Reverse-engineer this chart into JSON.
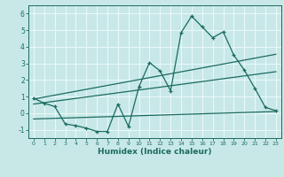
{
  "title": "",
  "xlabel": "Humidex (Indice chaleur)",
  "xlim": [
    -0.5,
    23.5
  ],
  "ylim": [
    -1.5,
    6.5
  ],
  "xticks": [
    0,
    1,
    2,
    3,
    4,
    5,
    6,
    7,
    8,
    9,
    10,
    11,
    12,
    13,
    14,
    15,
    16,
    17,
    18,
    19,
    20,
    21,
    22,
    23
  ],
  "yticks": [
    -1,
    0,
    1,
    2,
    3,
    4,
    5,
    6
  ],
  "bg_color": "#c8e8e8",
  "line_color": "#1a6b5e",
  "grid_color": "#e8f8f8",
  "series1_x": [
    0,
    1,
    2,
    3,
    4,
    5,
    6,
    7,
    8,
    9,
    10,
    11,
    12,
    13,
    14,
    15,
    16,
    17,
    18,
    19,
    20,
    21,
    22,
    23
  ],
  "series1_y": [
    0.9,
    0.6,
    0.4,
    -0.65,
    -0.75,
    -0.9,
    -1.1,
    -1.1,
    0.55,
    -0.8,
    1.6,
    3.05,
    2.55,
    1.35,
    4.85,
    5.85,
    5.2,
    4.55,
    4.9,
    3.5,
    2.6,
    1.5,
    0.35,
    0.15
  ],
  "series2_x": [
    0,
    23
  ],
  "series2_y": [
    0.85,
    3.55
  ],
  "series3_x": [
    0,
    23
  ],
  "series3_y": [
    0.55,
    2.5
  ],
  "series4_x": [
    0,
    23
  ],
  "series4_y": [
    -0.35,
    0.1
  ]
}
